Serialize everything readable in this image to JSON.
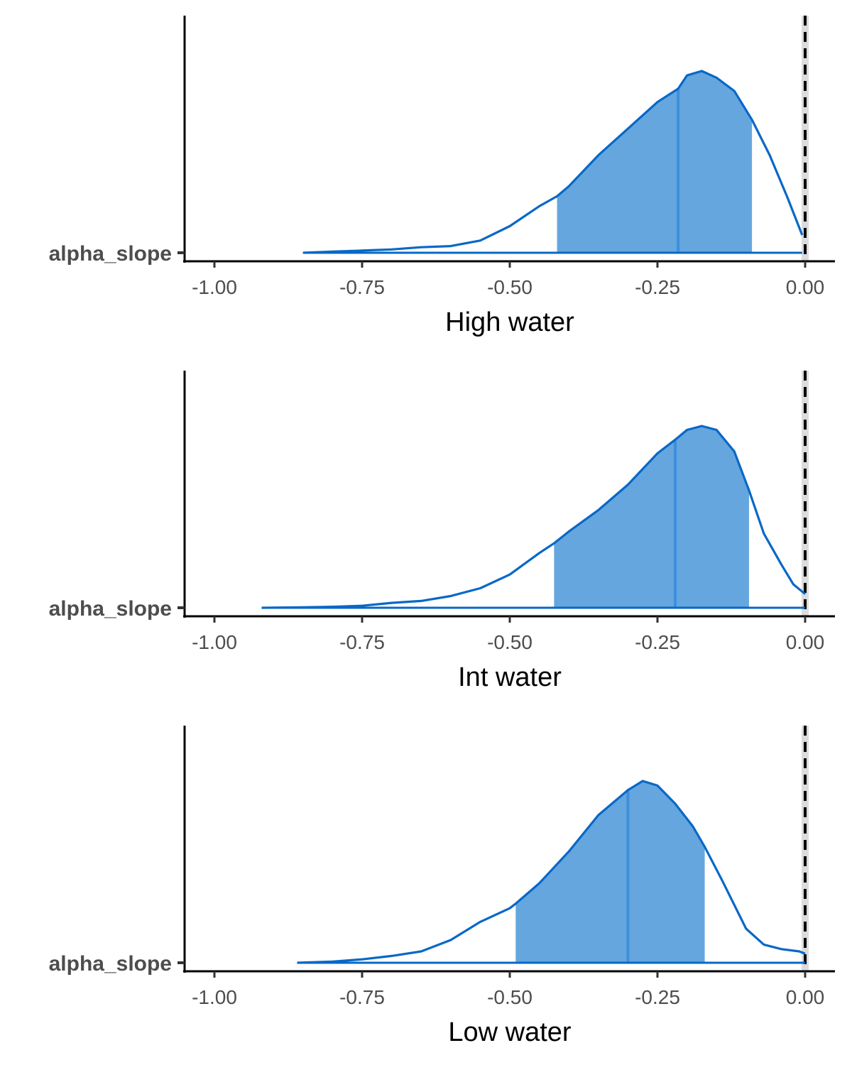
{
  "colors": {
    "line": "#0868c6",
    "fill": "#65a6df",
    "median": "#3d8fdc",
    "axis": "#000000",
    "ref_line": "#000000",
    "ref_band": "#dcdcdc"
  },
  "chart_data": [
    {
      "type": "area",
      "title": "High water",
      "parameter_label": "alpha_slope",
      "xlim": [
        -1.0,
        0.0
      ],
      "x_ticks": [
        -1.0,
        -0.75,
        -0.5,
        -0.25,
        0.0
      ],
      "x_tick_labels": [
        "-1.00",
        "-0.75",
        "-0.50",
        "-0.25",
        "0.00"
      ],
      "reference_line": 0.0,
      "interval": [
        -0.42,
        -0.09
      ],
      "median": -0.215,
      "density": {
        "x": [
          -0.85,
          -0.8,
          -0.75,
          -0.7,
          -0.65,
          -0.6,
          -0.55,
          -0.5,
          -0.45,
          -0.42,
          -0.4,
          -0.35,
          -0.3,
          -0.25,
          -0.215,
          -0.2,
          -0.175,
          -0.15,
          -0.12,
          -0.09,
          -0.06,
          -0.03,
          -0.005
        ],
        "y": [
          0.0,
          0.005,
          0.01,
          0.015,
          0.025,
          0.03,
          0.055,
          0.12,
          0.21,
          0.255,
          0.3,
          0.44,
          0.56,
          0.68,
          0.74,
          0.8,
          0.82,
          0.79,
          0.73,
          0.6,
          0.44,
          0.25,
          0.08
        ]
      }
    },
    {
      "type": "area",
      "title": "Int water",
      "parameter_label": "alpha_slope",
      "xlim": [
        -1.0,
        0.0
      ],
      "x_ticks": [
        -1.0,
        -0.75,
        -0.5,
        -0.25,
        0.0
      ],
      "x_tick_labels": [
        "-1.00",
        "-0.75",
        "-0.50",
        "-0.25",
        "0.00"
      ],
      "reference_line": 0.0,
      "interval": [
        -0.425,
        -0.095
      ],
      "median": -0.22,
      "density": {
        "x": [
          -0.92,
          -0.85,
          -0.8,
          -0.75,
          -0.7,
          -0.65,
          -0.6,
          -0.55,
          -0.5,
          -0.45,
          -0.425,
          -0.4,
          -0.35,
          -0.3,
          -0.25,
          -0.22,
          -0.2,
          -0.175,
          -0.15,
          -0.12,
          -0.095,
          -0.07,
          -0.04,
          -0.02,
          0.0
        ],
        "y": [
          0.0,
          0.002,
          0.005,
          0.01,
          0.025,
          0.035,
          0.06,
          0.1,
          0.17,
          0.28,
          0.33,
          0.39,
          0.5,
          0.63,
          0.79,
          0.86,
          0.91,
          0.93,
          0.91,
          0.8,
          0.6,
          0.38,
          0.22,
          0.12,
          0.07
        ]
      }
    },
    {
      "type": "area",
      "title": "Low water",
      "parameter_label": "alpha_slope",
      "xlim": [
        -1.0,
        0.0
      ],
      "x_ticks": [
        -1.0,
        -0.75,
        -0.5,
        -0.25,
        0.0
      ],
      "x_tick_labels": [
        "-1.00",
        "-0.75",
        "-0.50",
        "-0.25",
        "0.00"
      ],
      "reference_line": 0.0,
      "interval": [
        -0.49,
        -0.17
      ],
      "median": -0.3,
      "density": {
        "x": [
          -0.86,
          -0.8,
          -0.75,
          -0.7,
          -0.65,
          -0.6,
          -0.55,
          -0.5,
          -0.49,
          -0.45,
          -0.4,
          -0.35,
          -0.3,
          -0.275,
          -0.25,
          -0.22,
          -0.19,
          -0.17,
          -0.14,
          -0.1,
          -0.07,
          -0.04,
          -0.01,
          0.0
        ],
        "y": [
          0.0,
          0.005,
          0.015,
          0.03,
          0.05,
          0.1,
          0.18,
          0.24,
          0.26,
          0.35,
          0.49,
          0.65,
          0.76,
          0.8,
          0.78,
          0.7,
          0.6,
          0.51,
          0.36,
          0.15,
          0.08,
          0.06,
          0.05,
          0.04
        ]
      }
    }
  ]
}
